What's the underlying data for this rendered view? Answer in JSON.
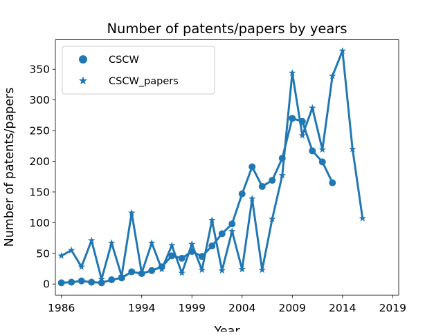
{
  "chart_data": {
    "type": "line",
    "title": "Number of patents/papers by years",
    "xlabel": "Year",
    "ylabel": "Number of patents/papers",
    "xlim": [
      1985.4,
      2019.6
    ],
    "ylim": [
      -18,
      398
    ],
    "xticks": [
      1986,
      1994,
      1999,
      2004,
      2009,
      2014,
      2019
    ],
    "yticks": [
      0,
      50,
      100,
      150,
      200,
      250,
      300,
      350
    ],
    "grid": false,
    "legend_position": "top-left",
    "line_color": "#1f77b4",
    "series": [
      {
        "name": "CSCW",
        "marker": "circle",
        "x": [
          1986,
          1987,
          1988,
          1989,
          1990,
          1991,
          1992,
          1993,
          1994,
          1995,
          1996,
          1997,
          1998,
          1999,
          2000,
          2001,
          2002,
          2003,
          2004,
          2005,
          2006,
          2007,
          2008,
          2009,
          2010,
          2011,
          2012,
          2013,
          2014,
          2015,
          2016
        ],
        "values": [
          2,
          3,
          5,
          3,
          2,
          7,
          10,
          20,
          17,
          22,
          28,
          46,
          42,
          53,
          45,
          62,
          82,
          98,
          147,
          191,
          159,
          169,
          205,
          270,
          265,
          217,
          199,
          165,
          null,
          null,
          null
        ]
      },
      {
        "name": "CSCW_papers",
        "marker": "star",
        "x": [
          1986,
          1987,
          1988,
          1989,
          1990,
          1991,
          1992,
          1993,
          1994,
          1995,
          1996,
          1997,
          1998,
          1999,
          2000,
          2001,
          2002,
          2003,
          2004,
          2005,
          2006,
          2007,
          2008,
          2009,
          2010,
          2011,
          2012,
          2013,
          2014,
          2015,
          2016,
          2017,
          2018,
          2019
        ],
        "values": [
          46,
          55,
          28,
          71,
          8,
          67,
          13,
          116,
          18,
          67,
          24,
          63,
          18,
          65,
          23,
          104,
          22,
          86,
          24,
          139,
          23,
          106,
          177,
          344,
          242,
          287,
          219,
          339,
          380,
          220,
          107,
          null,
          null,
          null
        ]
      }
    ]
  }
}
